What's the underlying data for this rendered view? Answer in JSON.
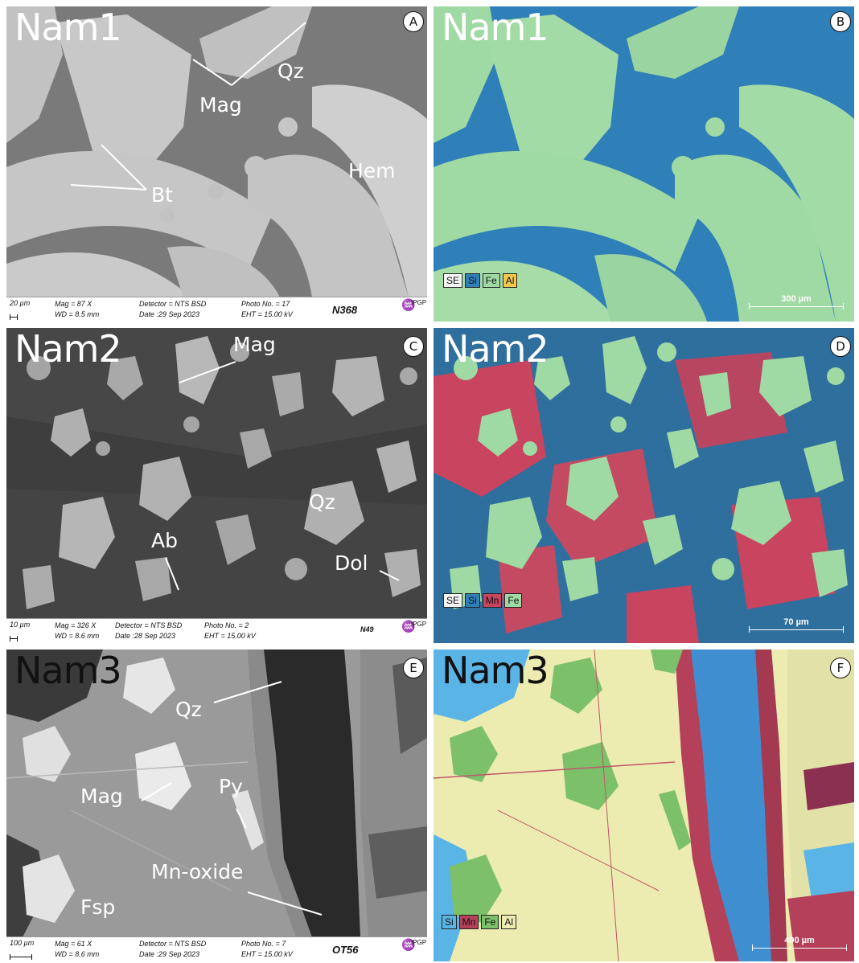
{
  "panels": {
    "A": {
      "letter": "A",
      "sample": "Nam1",
      "labels": {
        "qz": "Qz",
        "mag": "Mag",
        "bt": "Bt",
        "hem": "Hem"
      },
      "infobar": {
        "scale": "20 µm",
        "mag": "Mag =   87 X",
        "wd": "WD =  8.5 mm",
        "detector": "Detector = NTS BSD",
        "date": "Date :29 Sep 2023",
        "photo": "Photo No. = 17",
        "eht": "EHT = 15.00 kV",
        "sample_id": "N368",
        "logo": "IPGP"
      }
    },
    "B": {
      "letter": "B",
      "sample": "Nam1",
      "legend": [
        "SE",
        "Si",
        "Fe",
        "Al"
      ],
      "scale": "300 µm"
    },
    "C": {
      "letter": "C",
      "sample": "Nam2",
      "labels": {
        "mag": "Mag",
        "qz": "Qz",
        "ab": "Ab",
        "dol": "Dol"
      },
      "infobar": {
        "scale": "10 µm",
        "mag": "Mag =  326 X",
        "wd": "WD =  8.6 mm",
        "detector": "Detector = NTS BSD",
        "date": "Date :28 Sep 2023",
        "photo": "Photo No. = 2",
        "eht": "EHT = 15.00 kV",
        "sample_id": "N49",
        "logo": "IPGP"
      }
    },
    "D": {
      "letter": "D",
      "sample": "Nam2",
      "legend": [
        "SE",
        "Si",
        "Mn",
        "Fe"
      ],
      "scale": "70 µm"
    },
    "E": {
      "letter": "E",
      "sample": "Nam3",
      "labels": {
        "qz": "Qz",
        "mag": "Mag",
        "py": "Py",
        "mnoxide": "Mn-oxide",
        "fsp": "Fsp"
      },
      "infobar": {
        "scale": "100 µm",
        "mag": "Mag =   61 X",
        "wd": "WD =  8.6 mm",
        "detector": "Detector = NTS BSD",
        "date": "Date :29 Sep 2023",
        "photo": "Photo No. = 7",
        "eht": "EHT = 15.00 kV",
        "sample_id": "OT56",
        "logo": "IPGP"
      }
    },
    "F": {
      "letter": "F",
      "sample": "Nam3",
      "legend": [
        "Si",
        "Mn",
        "Fe",
        "Al"
      ],
      "scale": "400 µm"
    }
  },
  "colors": {
    "Si": "#2f7fb8",
    "Fe": "#9fd9a3",
    "Mn": "#c8445f",
    "Al": "#f2c94c",
    "SE": "#f4f4f4",
    "F_Si": "#5bb4e6",
    "F_Fe": "#7cc06a",
    "F_Al": "#ecebb0",
    "F_Mn": "#b5405a"
  }
}
